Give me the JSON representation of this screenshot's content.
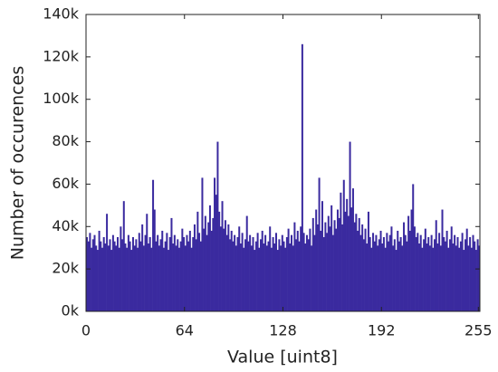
{
  "chart_data": {
    "type": "histogram",
    "xlabel": "Value [uint8]",
    "ylabel": "Number of occurences",
    "color": "#3a2a9f",
    "xlim": [
      0,
      256
    ],
    "xticks": [
      0,
      64,
      128,
      192,
      255
    ],
    "ylim": [
      0,
      140000
    ],
    "yticks": [
      {
        "value": 0,
        "label": "0k"
      },
      {
        "value": 20000,
        "label": "20k"
      },
      {
        "value": 40000,
        "label": "40k"
      },
      {
        "value": 60000,
        "label": "60k"
      },
      {
        "value": 80000,
        "label": "80k"
      },
      {
        "value": 100000,
        "label": "100k"
      },
      {
        "value": 120000,
        "label": "120k"
      },
      {
        "value": 140000,
        "label": "140k"
      }
    ],
    "bins": [
      0,
      1,
      2,
      3,
      4,
      5,
      6,
      7,
      8,
      9,
      10,
      11,
      12,
      13,
      14,
      15,
      16,
      17,
      18,
      19,
      20,
      21,
      22,
      23,
      24,
      25,
      26,
      27,
      28,
      29,
      30,
      31,
      32,
      33,
      34,
      35,
      36,
      37,
      38,
      39,
      40,
      41,
      42,
      43,
      44,
      45,
      46,
      47,
      48,
      49,
      50,
      51,
      52,
      53,
      54,
      55,
      56,
      57,
      58,
      59,
      60,
      61,
      62,
      63,
      64,
      65,
      66,
      67,
      68,
      69,
      70,
      71,
      72,
      73,
      74,
      75,
      76,
      77,
      78,
      79,
      80,
      81,
      82,
      83,
      84,
      85,
      86,
      87,
      88,
      89,
      90,
      91,
      92,
      93,
      94,
      95,
      96,
      97,
      98,
      99,
      100,
      101,
      102,
      103,
      104,
      105,
      106,
      107,
      108,
      109,
      110,
      111,
      112,
      113,
      114,
      115,
      116,
      117,
      118,
      119,
      120,
      121,
      122,
      123,
      124,
      125,
      126,
      127,
      128,
      129,
      130,
      131,
      132,
      133,
      134,
      135,
      136,
      137,
      138,
      139,
      140,
      141,
      142,
      143,
      144,
      145,
      146,
      147,
      148,
      149,
      150,
      151,
      152,
      153,
      154,
      155,
      156,
      157,
      158,
      159,
      160,
      161,
      162,
      163,
      164,
      165,
      166,
      167,
      168,
      169,
      170,
      171,
      172,
      173,
      174,
      175,
      176,
      177,
      178,
      179,
      180,
      181,
      182,
      183,
      184,
      185,
      186,
      187,
      188,
      189,
      190,
      191,
      192,
      193,
      194,
      195,
      196,
      197,
      198,
      199,
      200,
      201,
      202,
      203,
      204,
      205,
      206,
      207,
      208,
      209,
      210,
      211,
      212,
      213,
      214,
      215,
      216,
      217,
      218,
      219,
      220,
      221,
      222,
      223,
      224,
      225,
      226,
      227,
      228,
      229,
      230,
      231,
      232,
      233,
      234,
      235,
      236,
      237,
      238,
      239,
      240,
      241,
      242,
      243,
      244,
      245,
      246,
      247,
      248,
      249,
      250,
      251,
      252,
      253,
      254,
      255,
      256
    ],
    "values": [
      35000,
      33000,
      37000,
      30000,
      34000,
      36000,
      31000,
      29000,
      38000,
      33000,
      30000,
      35000,
      32000,
      46000,
      31000,
      34000,
      29000,
      36000,
      33000,
      31000,
      35000,
      30000,
      40000,
      34000,
      52000,
      32000,
      30000,
      36000,
      33000,
      29000,
      35000,
      31000,
      34000,
      30000,
      37000,
      33000,
      41000,
      31000,
      36000,
      46000,
      32000,
      35000,
      30000,
      62000,
      48000,
      33000,
      36000,
      31000,
      34000,
      38000,
      30000,
      33000,
      37000,
      29000,
      35000,
      44000,
      32000,
      36000,
      31000,
      34000,
      30000,
      33000,
      39000,
      35000,
      31000,
      36000,
      33000,
      38000,
      30000,
      35000,
      41000,
      34000,
      47000,
      37000,
      33000,
      63000,
      39000,
      45000,
      36000,
      42000,
      50000,
      38000,
      44000,
      63000,
      55000,
      80000,
      47000,
      40000,
      52000,
      39000,
      43000,
      36000,
      41000,
      34000,
      38000,
      33000,
      36000,
      31000,
      35000,
      40000,
      32000,
      37000,
      30000,
      34000,
      45000,
      33000,
      36000,
      31000,
      35000,
      29000,
      33000,
      37000,
      30000,
      34000,
      38000,
      32000,
      36000,
      31000,
      33000,
      40000,
      30000,
      35000,
      32000,
      37000,
      29000,
      34000,
      31000,
      36000,
      33000,
      30000,
      35000,
      39000,
      32000,
      36000,
      31000,
      42000,
      34000,
      38000,
      33000,
      40000,
      126000,
      37000,
      32000,
      36000,
      34000,
      39000,
      31000,
      44000,
      36000,
      48000,
      41000,
      63000,
      38000,
      52000,
      35000,
      42000,
      37000,
      45000,
      40000,
      50000,
      36000,
      43000,
      39000,
      48000,
      44000,
      56000,
      41000,
      62000,
      47000,
      53000,
      45000,
      80000,
      49000,
      58000,
      42000,
      46000,
      38000,
      44000,
      36000,
      41000,
      34000,
      39000,
      32000,
      47000,
      35000,
      30000,
      37000,
      33000,
      36000,
      31000,
      34000,
      38000,
      32000,
      35000,
      30000,
      37000,
      33000,
      36000,
      40000,
      31000,
      34000,
      29000,
      38000,
      33000,
      35000,
      31000,
      42000,
      36000,
      33000,
      45000,
      38000,
      48000,
      60000,
      40000,
      35000,
      37000,
      32000,
      36000,
      30000,
      34000,
      39000,
      32000,
      35000,
      31000,
      36000,
      30000,
      34000,
      43000,
      32000,
      37000,
      31000,
      48000,
      35000,
      33000,
      38000,
      30000,
      34000,
      40000,
      32000,
      36000,
      31000,
      35000,
      30000,
      33000,
      37000,
      29000,
      34000,
      39000,
      31000,
      35000,
      30000,
      36000,
      33000,
      29000,
      34000,
      31000
    ]
  }
}
